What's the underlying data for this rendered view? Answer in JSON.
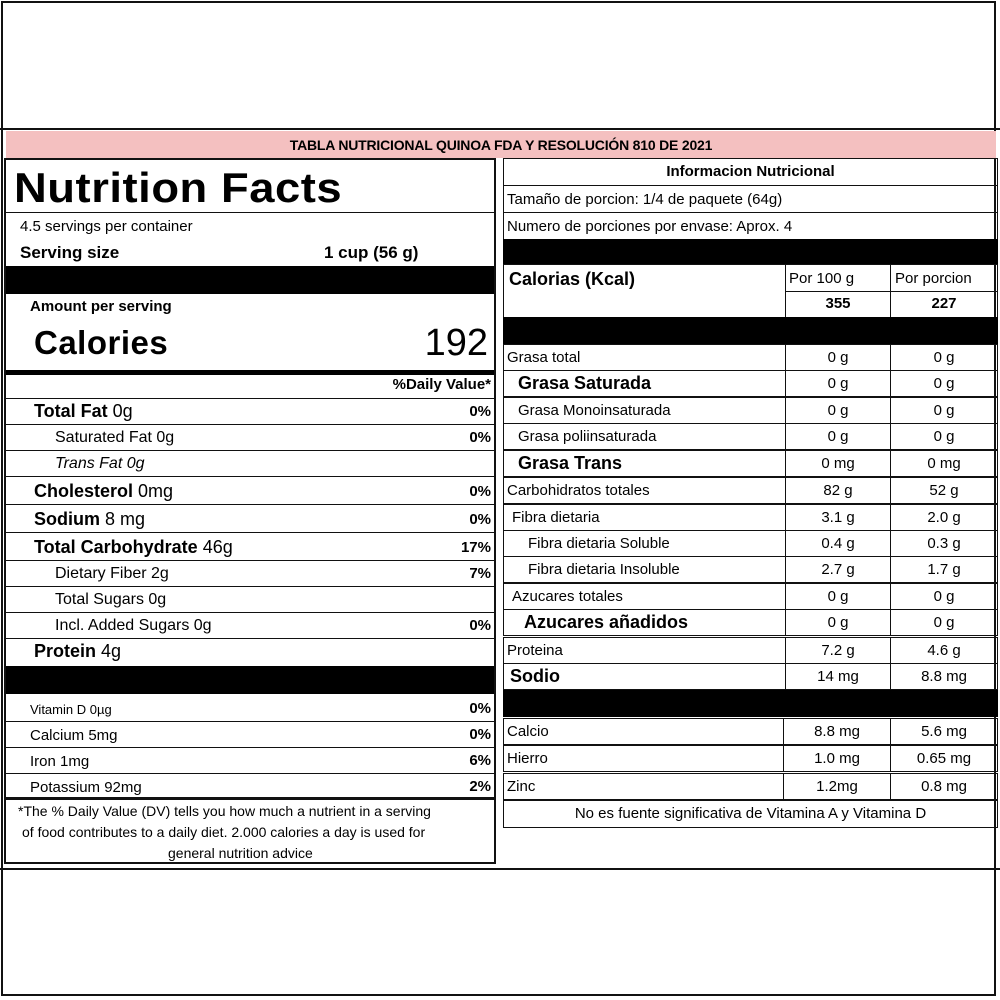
{
  "banner": "TABLA NUTRICIONAL QUINOA FDA Y RESOLUCIÓN 810 DE 2021",
  "left": {
    "title": "Nutrition Facts",
    "servings": "4.5 servings per container",
    "serving_size_label": "Serving size",
    "serving_size_value": "1 cup (56 g)",
    "amount_per_serving": "Amount per serving",
    "calories_label": "Calories",
    "calories_value": "192",
    "dv_header": "%Daily Value*",
    "rows": [
      {
        "name": "Total Fat",
        "amount": " 0g",
        "pct": "0%"
      },
      {
        "name": "Saturated Fat 0g",
        "pct": "0%"
      },
      {
        "name": "Trans Fat 0g"
      },
      {
        "name": "Cholesterol",
        "amount": " 0mg",
        "pct": "0%"
      },
      {
        "name": "Sodium",
        "amount": " 8 mg",
        "pct": "0%"
      },
      {
        "name": "Total Carbohydrate",
        "amount": " 46g",
        "pct": "17%"
      },
      {
        "name": "Dietary Fiber 2g",
        "pct": "7%"
      },
      {
        "name": "Total Sugars 0g"
      },
      {
        "name": "Incl. Added Sugars 0g",
        "pct": "0%"
      },
      {
        "name": "Protein",
        "amount": " 4g"
      }
    ],
    "minerals": [
      {
        "name": "Vitamin D  0µg",
        "pct": "0%"
      },
      {
        "name": "Calcium 5mg",
        "pct": "0%"
      },
      {
        "name": "Iron 1mg",
        "pct": "6%"
      },
      {
        "name": "Potassium 92mg",
        "pct": "2%"
      }
    ],
    "footnote_1": "*The % Daily Value (DV) tells you how much a nutrient in a serving",
    "footnote_2": "of food contributes to a daily diet. 2.000 calories a day is used for",
    "footnote_3": "general nutrition advice"
  },
  "right": {
    "title": "Informacion Nutricional",
    "serving_size": "Tamaño de porcion: 1/4 de paquete (64g)",
    "servings": "Numero de porciones por envase: Aprox. 4",
    "calories_label": "Calorias (Kcal)",
    "col_100g": "Por 100 g",
    "col_portion": "Por porcion",
    "calories_100g": "355",
    "calories_portion": "227",
    "rows": [
      {
        "name": "Grasa total",
        "v100": "0 g",
        "vp": "0 g"
      },
      {
        "name": "Grasa Saturada",
        "v100": "0 g",
        "vp": "0 g"
      },
      {
        "name": "Grasa Monoinsaturada",
        "v100": "0 g",
        "vp": "0 g"
      },
      {
        "name": "Grasa poliinsaturada",
        "v100": "0 g",
        "vp": "0 g"
      },
      {
        "name": "Grasa Trans",
        "v100": "0 mg",
        "vp": "0 mg"
      },
      {
        "name": "Carbohidratos totales",
        "v100": "82 g",
        "vp": "52 g"
      },
      {
        "name": "Fibra dietaria",
        "v100": "3.1 g",
        "vp": "2.0 g"
      },
      {
        "name": "Fibra dietaria Soluble",
        "v100": "0.4 g",
        "vp": "0.3 g"
      },
      {
        "name": "Fibra dietaria Insoluble",
        "v100": "2.7 g",
        "vp": "1.7 g"
      },
      {
        "name": "Azucares totales",
        "v100": "0 g",
        "vp": "0 g"
      },
      {
        "name": "Azucares añadidos",
        "v100": "0 g",
        "vp": "0 g"
      },
      {
        "name": "Proteina",
        "v100": "7.2 g",
        "vp": "4.6 g"
      },
      {
        "name": "Sodio",
        "v100": "14 mg",
        "vp": "8.8 mg"
      }
    ],
    "minerals": [
      {
        "name": "Calcio",
        "v100": "8.8 mg",
        "vp": "5.6 mg"
      },
      {
        "name": "Hierro",
        "v100": "1.0 mg",
        "vp": "0.65 mg"
      },
      {
        "name": "Zinc",
        "v100": "1.2mg",
        "vp": "0.8 mg"
      }
    ],
    "footnote": "No es fuente significativa de Vitamina A y Vitamina D"
  }
}
